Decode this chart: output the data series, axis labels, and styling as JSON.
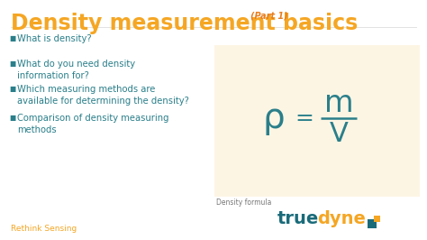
{
  "bg_color": "#ffffff",
  "title_main": "Density measurement basics",
  "title_part": "(Part 1)",
  "title_color": "#f5a623",
  "title_part_color": "#e87d1e",
  "bullet_color": "#2a7f8a",
  "bullet_items": [
    "What is density?",
    "What do you need density\ninformation for?",
    "Which measuring methods are\navailable for determining the density?",
    "Comparison of density measuring\nmethods"
  ],
  "bullet_marker": "■",
  "formula_box_color": "#fdf5e4",
  "formula_rho": "ρ",
  "formula_equals": "=",
  "formula_m": "m",
  "formula_v": "V",
  "formula_color": "#2a7f8a",
  "formula_caption": "Density formula",
  "formula_caption_color": "#777777",
  "footer_text": "Rethink Sensing",
  "footer_color": "#f5a623",
  "truedyne_true_color": "#1a6b7a",
  "truedyne_dyne_color": "#f5a623",
  "logo_sq1_color": "#1a6b7a",
  "logo_sq2_color": "#f5a623"
}
